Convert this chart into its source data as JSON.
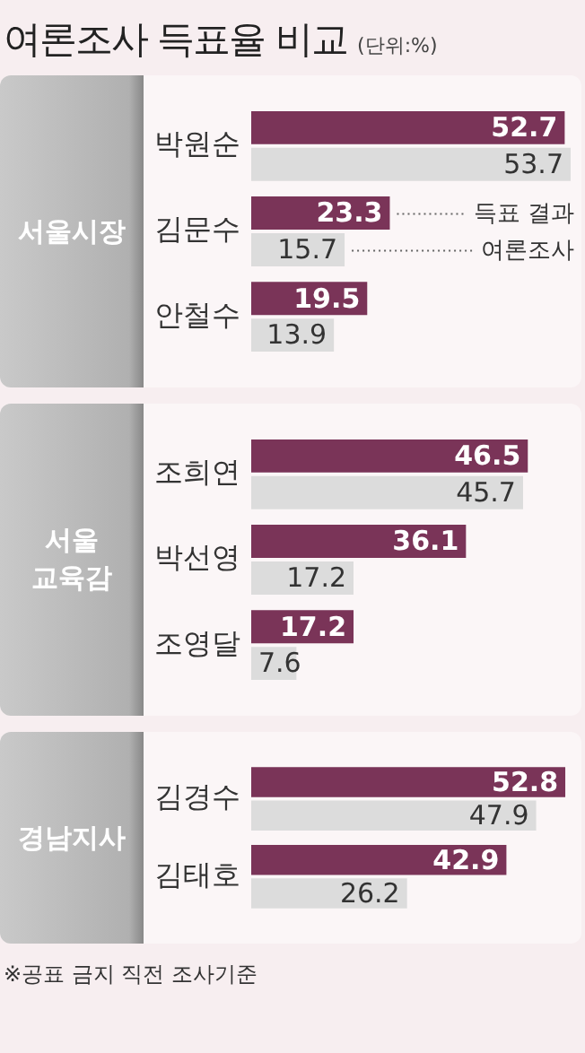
{
  "chart_data": [
    {
      "type": "bar",
      "orientation": "horizontal",
      "title": "여론조사 득표율 비교",
      "subtitle": "(단위:%)",
      "ylabel": "서울시장",
      "categories": [
        "박원순",
        "김문수",
        "안철수"
      ],
      "series": [
        {
          "name": "득표 결과",
          "color": "#7a3458",
          "values": [
            52.7,
            23.3,
            19.5
          ]
        },
        {
          "name": "여론조사",
          "color": "#dcdcdc",
          "values": [
            53.7,
            15.7,
            13.9
          ]
        }
      ],
      "tick_labels": "y",
      "data_labels": true,
      "grid": false,
      "legend": false
    },
    {
      "type": "bar",
      "orientation": "horizontal",
      "ylabel": "서울\n교육감",
      "categories": [
        "조희연",
        "박선영",
        "조영달"
      ],
      "series": [
        {
          "color": "#7a3458",
          "values": [
            46.5,
            36.1,
            17.2
          ]
        },
        {
          "color": "#dcdcdc",
          "values": [
            45.7,
            17.2,
            7.6
          ]
        }
      ],
      "tick_labels": "y",
      "data_labels": true,
      "grid": false,
      "legend": false
    },
    {
      "type": "bar",
      "orientation": "horizontal",
      "ylabel": "경남지사",
      "categories": [
        "김경수",
        "김태호"
      ],
      "series": [
        {
          "color": "#7a3458",
          "values": [
            52.8,
            42.9
          ]
        },
        {
          "color": "#dcdcdc",
          "values": [
            47.9,
            26.2
          ]
        }
      ],
      "tick_labels": "y",
      "data_labels": true,
      "grid": false,
      "legend": false,
      "annotations": [
        "※공표 금지 직전 조사기준"
      ]
    }
  ]
}
